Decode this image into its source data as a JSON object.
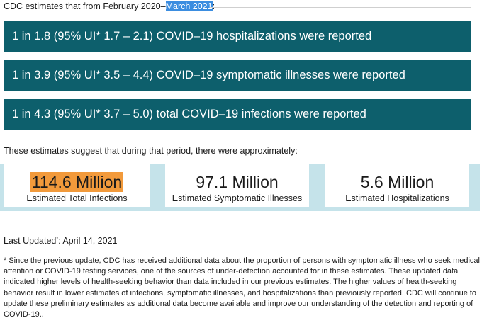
{
  "intro": {
    "prefix": "CDC estimates that from February 2020–",
    "highlight": "March 2021",
    "suffix": ":"
  },
  "ratios": [
    "1 in 1.8 (95% UI* 1.7 – 2.1) COVID–19 hospitalizations were reported",
    "1 in 3.9 (95% UI* 3.5 – 4.4) COVID–19 symptomatic illnesses were reported",
    "1 in 4.3 (95% UI* 3.7 – 5.0) total COVID–19 infections were reported"
  ],
  "estimates_lead": "These estimates suggest that during that period, there were approximately:",
  "stats": [
    {
      "value": "114.6 Million",
      "label": "Estimated Total Infections"
    },
    {
      "value": "97.1 Million",
      "label": "Estimated Symptomatic Illnesses"
    },
    {
      "value": "5.6 Million",
      "label": "Estimated Hospitalizations"
    }
  ],
  "last_updated": {
    "label": "Last Updated",
    "marker": "*",
    "date": ": April 14, 2021"
  },
  "footnote": "* Since the previous update, CDC has received additional data about the proportion of persons with symptomatic illness who seek medical attention or COVID-19 testing services, one of the sources of under-detection accounted for in these estimates. These updated data indicated higher levels of health-seeking behavior than data included in our previous estimates. The higher values of health-seeking behavior result in lower estimates of infections, symptomatic illnesses, and hospitalizations than previously reported. CDC will continue to update these preliminary estimates as additional data become available and improve our understanding of the detection and reporting of COVID-19..",
  "colors": {
    "bar": "#0d5f6c",
    "band": "#c5e3ea",
    "text_highlight": "#3b8de0",
    "value_highlight": "#f29a3b"
  }
}
